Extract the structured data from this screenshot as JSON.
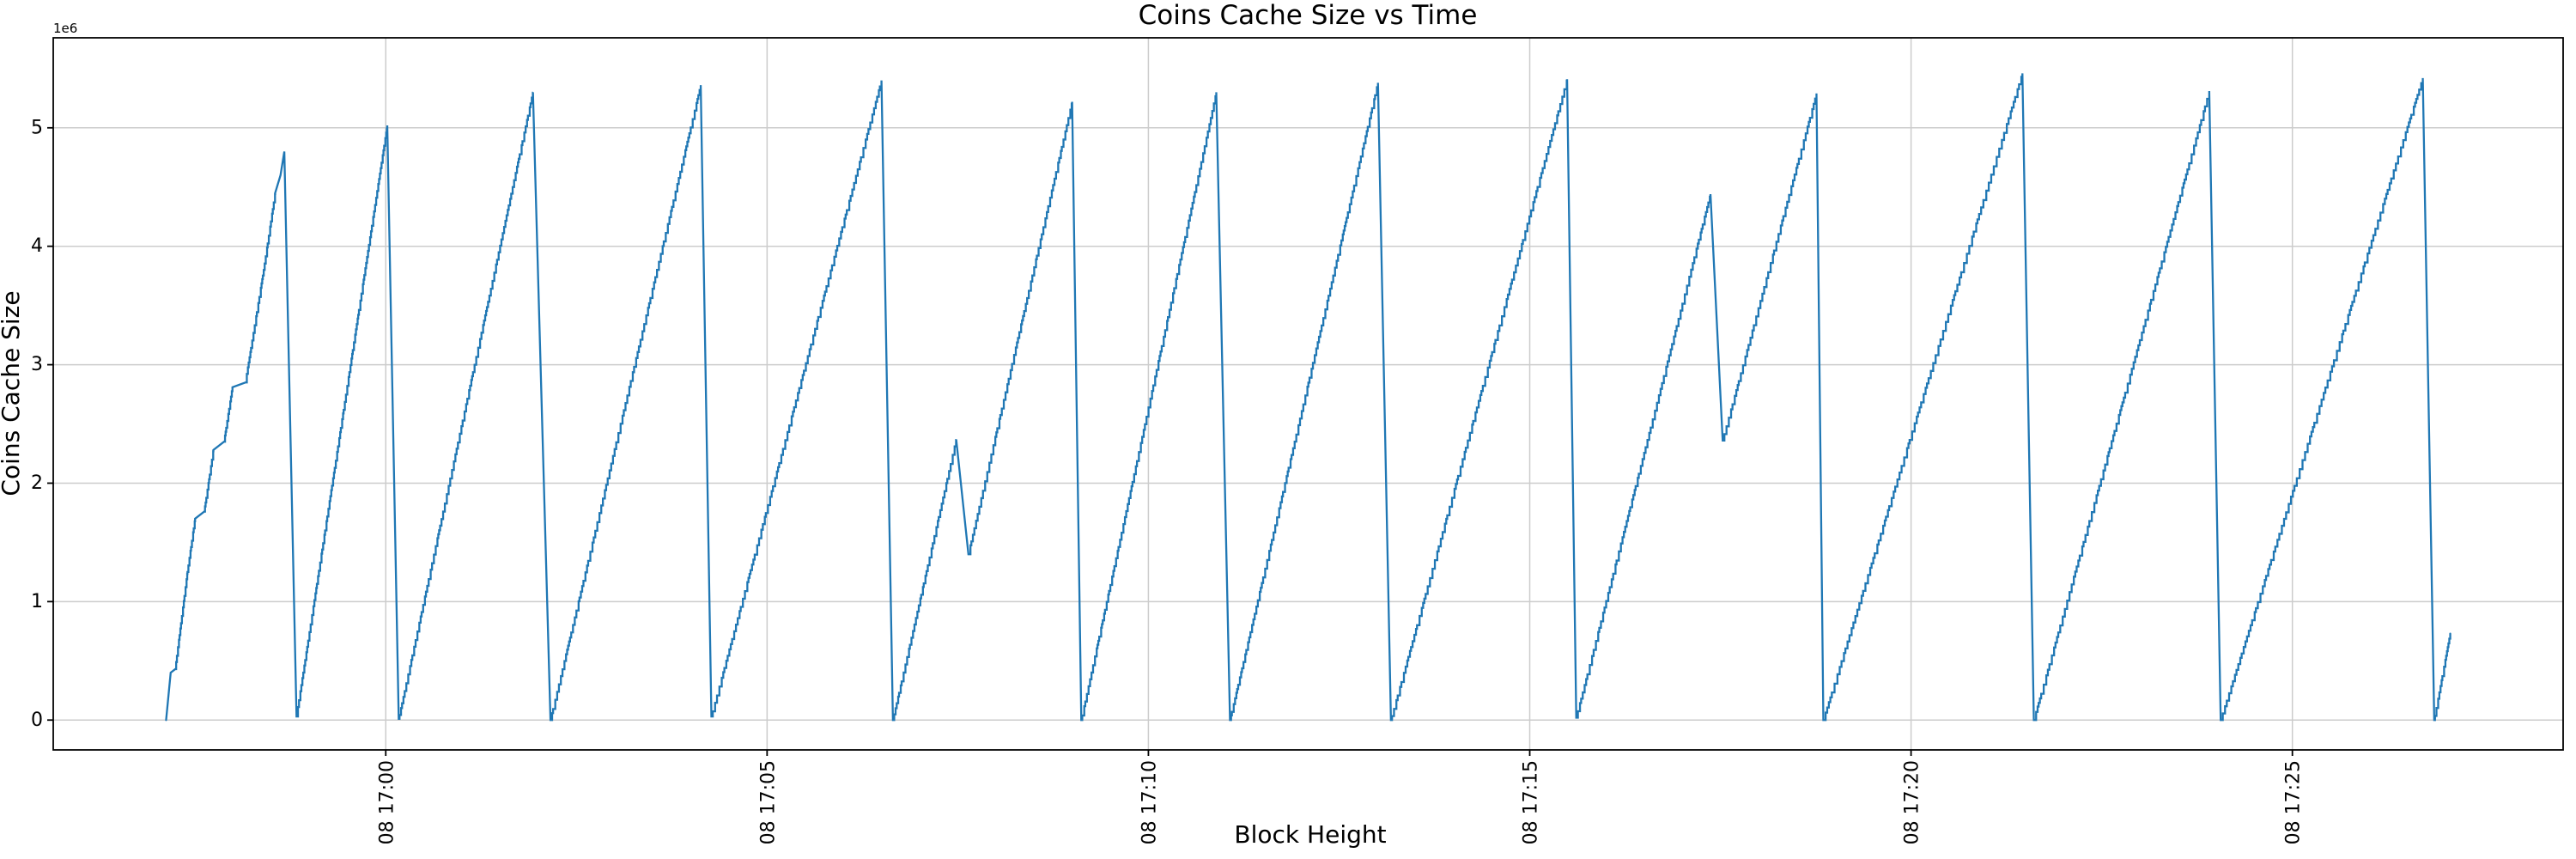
{
  "figure": {
    "title": "Coins Cache Size vs Time",
    "xlabel": "Block Height",
    "ylabel": "Coins Cache Size",
    "y_offset_text": "1e6"
  },
  "chart_data": {
    "type": "line",
    "title": "Coins Cache Size vs Time",
    "xlabel": "Block Height",
    "ylabel": "Coins Cache Size",
    "y_offset_text": "1e6",
    "grid": true,
    "legend": null,
    "line_color": "#1f77b4",
    "grid_color": "#cccccc",
    "spine_color": "#000000",
    "x_axis": {
      "tick_labels": [
        "08 17:00",
        "08 17:05",
        "08 17:10",
        "08 17:15",
        "08 17:20",
        "08 17:25"
      ],
      "tick_minutes": [
        0,
        5,
        10,
        15,
        20,
        25
      ],
      "lim_minutes": [
        -4.36,
        28.55
      ],
      "label_rotation_deg": 90
    },
    "y_axis": {
      "tick_labels": [
        "0",
        "1",
        "2",
        "3",
        "4",
        "5"
      ],
      "tick_values": [
        0,
        1000000,
        2000000,
        3000000,
        4000000,
        5000000
      ],
      "lim": [
        -252000,
        5760000
      ],
      "scale_note": "1e6"
    },
    "series": [
      {
        "name": "coins-cache-size",
        "style": "sawtooth with small block-by-block steps on rising ramps",
        "points_minutes_value": [
          [
            -2.88,
            0
          ],
          [
            -2.82,
            400000
          ],
          [
            -2.76,
            430000
          ],
          [
            -2.6,
            1250000
          ],
          [
            -2.5,
            1700000
          ],
          [
            -2.38,
            1760000
          ],
          [
            -2.26,
            2280000
          ],
          [
            -2.12,
            2350000
          ],
          [
            -2.01,
            2810000
          ],
          [
            -1.84,
            2850000
          ],
          [
            -1.6,
            3800000
          ],
          [
            -1.45,
            4450000
          ],
          [
            -1.38,
            4600000
          ],
          [
            -1.33,
            4800000
          ],
          [
            -1.17,
            30000
          ],
          [
            0.02,
            5020000
          ],
          [
            0.17,
            10000
          ],
          [
            1.93,
            5300000
          ],
          [
            2.16,
            0
          ],
          [
            4.13,
            5360000
          ],
          [
            4.27,
            30000
          ],
          [
            6.5,
            5400000
          ],
          [
            6.65,
            0
          ],
          [
            7.48,
            2370000
          ],
          [
            7.64,
            1400000
          ],
          [
            9.0,
            5220000
          ],
          [
            9.12,
            0
          ],
          [
            10.89,
            5300000
          ],
          [
            11.07,
            0
          ],
          [
            13.01,
            5380000
          ],
          [
            13.18,
            0
          ],
          [
            15.49,
            5410000
          ],
          [
            15.61,
            20000
          ],
          [
            17.37,
            4440000
          ],
          [
            17.53,
            2360000
          ],
          [
            18.76,
            5290000
          ],
          [
            18.85,
            0
          ],
          [
            21.46,
            5460000
          ],
          [
            21.61,
            0
          ],
          [
            23.91,
            5310000
          ],
          [
            24.06,
            0
          ],
          [
            26.71,
            5420000
          ],
          [
            26.86,
            0
          ],
          [
            27.07,
            730000
          ]
        ]
      }
    ]
  }
}
